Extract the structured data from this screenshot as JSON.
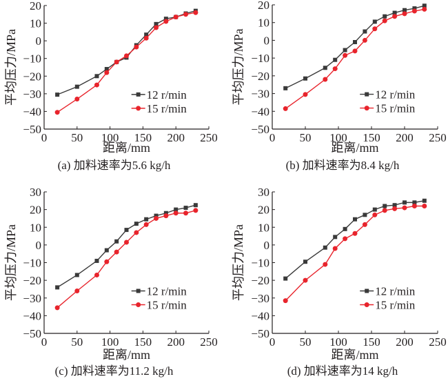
{
  "chart_data": [
    {
      "type": "line",
      "caption": "(a) 加料速率为5.6 kg/h",
      "xlabel": "距离/mm",
      "ylabel": "平均压力/MPa",
      "xlim": [
        0,
        250
      ],
      "ylim": [
        -50,
        20
      ],
      "xticks": [
        0,
        50,
        100,
        150,
        200,
        250
      ],
      "yticks": [
        -50,
        -40,
        -30,
        -20,
        -10,
        0,
        10,
        20
      ],
      "grid": false,
      "legend": "right-middle",
      "x": [
        20,
        50,
        80,
        95,
        110,
        125,
        140,
        155,
        170,
        185,
        200,
        215,
        230
      ],
      "series": [
        {
          "name": "12 r/min",
          "color": "#3a3a3a",
          "marker": "square",
          "values": [
            -30.5,
            -26,
            -20,
            -16,
            -12,
            -9.5,
            -2.5,
            3.5,
            9.5,
            12.5,
            13.5,
            15.5,
            17
          ]
        },
        {
          "name": "15 r/min",
          "color": "#e8242c",
          "marker": "circle",
          "values": [
            -40.5,
            -33,
            -25,
            -18,
            -12,
            -8.5,
            -3.5,
            1.5,
            7.5,
            11,
            13.5,
            15,
            16
          ]
        }
      ]
    },
    {
      "type": "line",
      "caption": "(b) 加料速率为8.4 kg/h",
      "xlabel": "距离/mm",
      "ylabel": "平均压力/MPa",
      "xlim": [
        0,
        250
      ],
      "ylim": [
        -50,
        20
      ],
      "xticks": [
        0,
        50,
        100,
        150,
        200,
        250
      ],
      "yticks": [
        -50,
        -40,
        -30,
        -20,
        -10,
        0,
        10,
        20
      ],
      "grid": false,
      "legend": "right-middle",
      "x": [
        20,
        50,
        80,
        95,
        110,
        125,
        140,
        155,
        170,
        185,
        200,
        215,
        230
      ],
      "series": [
        {
          "name": "12 r/min",
          "color": "#3a3a3a",
          "marker": "square",
          "values": [
            -27,
            -21.5,
            -15.5,
            -11,
            -5.5,
            -1,
            5,
            10.5,
            13.5,
            15.5,
            17,
            18,
            19.5
          ]
        },
        {
          "name": "15 r/min",
          "color": "#e8242c",
          "marker": "circle",
          "values": [
            -38.5,
            -30.5,
            -22,
            -16,
            -8.5,
            -6,
            0,
            6.5,
            11,
            13.5,
            15,
            16.5,
            17.5
          ]
        }
      ]
    },
    {
      "type": "line",
      "caption": "(c) 加料速率为11.2 kg/h",
      "xlabel": "距离/mm",
      "ylabel": "平均压力/MPa",
      "xlim": [
        0,
        250
      ],
      "ylim": [
        -50,
        30
      ],
      "xticks": [
        0,
        50,
        100,
        150,
        200,
        250
      ],
      "yticks": [
        -50,
        -40,
        -30,
        -20,
        -10,
        0,
        10,
        20,
        30
      ],
      "grid": false,
      "legend": "right-middle",
      "x": [
        20,
        50,
        80,
        95,
        110,
        125,
        140,
        155,
        170,
        185,
        200,
        215,
        230
      ],
      "series": [
        {
          "name": "12 r/min",
          "color": "#3a3a3a",
          "marker": "square",
          "values": [
            -24,
            -17,
            -9,
            -3,
            2,
            8.5,
            12,
            14.5,
            16.5,
            18,
            20,
            21,
            22.5
          ]
        },
        {
          "name": "15 r/min",
          "color": "#e8242c",
          "marker": "circle",
          "values": [
            -35.5,
            -26,
            -17,
            -9.5,
            -4,
            1.5,
            7,
            11.5,
            15,
            16.5,
            18,
            18,
            19.5
          ]
        }
      ]
    },
    {
      "type": "line",
      "caption": "(d) 加料速率为14 kg/h",
      "xlabel": "距离/mm",
      "ylabel": "平均压力/MPa",
      "xlim": [
        0,
        250
      ],
      "ylim": [
        -50,
        30
      ],
      "xticks": [
        0,
        50,
        100,
        150,
        200,
        250
      ],
      "yticks": [
        -50,
        -40,
        -30,
        -20,
        -10,
        0,
        10,
        20,
        30
      ],
      "grid": false,
      "legend": "right-middle",
      "x": [
        20,
        50,
        80,
        95,
        110,
        125,
        140,
        155,
        170,
        185,
        200,
        215,
        230
      ],
      "series": [
        {
          "name": "12 r/min",
          "color": "#3a3a3a",
          "marker": "square",
          "values": [
            -19,
            -9.5,
            -1.5,
            4.5,
            9,
            14.5,
            17,
            20,
            22,
            22.5,
            24,
            24,
            25
          ]
        },
        {
          "name": "15 r/min",
          "color": "#e8242c",
          "marker": "circle",
          "values": [
            -31.5,
            -20,
            -11,
            -2,
            3.5,
            6.5,
            11.5,
            17,
            19.5,
            20.5,
            21,
            22,
            22
          ]
        }
      ]
    }
  ]
}
